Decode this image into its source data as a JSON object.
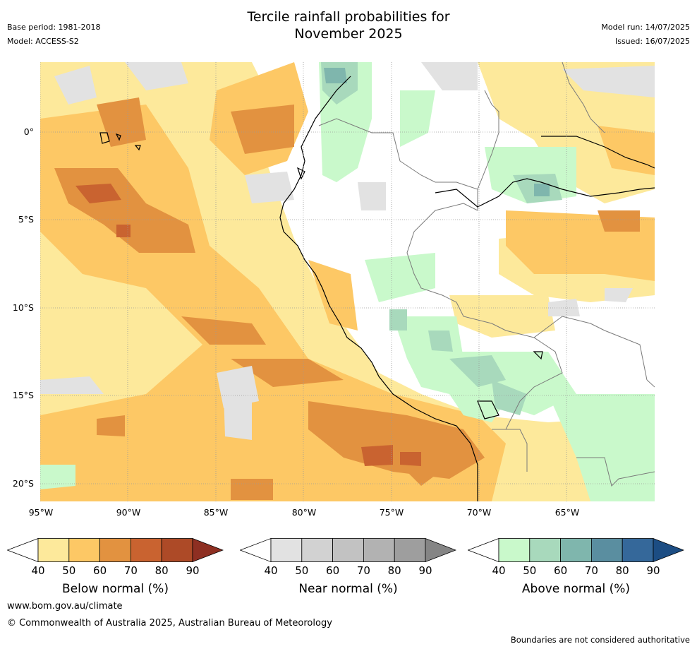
{
  "title": {
    "line1": "Tercile rainfall probabilities for",
    "line2": "November 2025"
  },
  "meta_left": {
    "base_period": "Base period: 1981-2018",
    "model": "Model: ACCESS-S2"
  },
  "meta_right": {
    "model_run": "Model run: 14/07/2025",
    "issued": "Issued: 16/07/2025"
  },
  "map": {
    "lat_labels": [
      "0°",
      "5°S",
      "10°S",
      "15°S",
      "20°S"
    ],
    "lon_labels": [
      "95°W",
      "90°W",
      "85°W",
      "80°W",
      "75°W",
      "70°W",
      "65°W"
    ]
  },
  "colorbars": [
    {
      "title": "Below normal (%)",
      "ticks": [
        "40",
        "50",
        "60",
        "70",
        "80",
        "90"
      ],
      "colors": [
        "#fde99b",
        "#fdc865",
        "#e29240",
        "#c96330",
        "#ad4a27",
        "#8e2f22"
      ]
    },
    {
      "title": "Near normal (%)",
      "ticks": [
        "40",
        "50",
        "60",
        "70",
        "80",
        "90"
      ],
      "colors": [
        "#e2e2e2",
        "#d2d2d2",
        "#c2c2c2",
        "#b2b2b2",
        "#9e9e9e",
        "#858585"
      ]
    },
    {
      "title": "Above normal (%)",
      "ticks": [
        "40",
        "50",
        "60",
        "70",
        "80",
        "90"
      ],
      "colors": [
        "#c9f9cb",
        "#a8d9bc",
        "#7fb6ad",
        "#5a8ea0",
        "#35689a",
        "#1c4d83"
      ]
    }
  ],
  "footer": {
    "url": "www.bom.gov.au/climate",
    "copyright": "© Commonwealth of Australia 2025, Australian Bureau of Meteorology",
    "note": "Boundaries are not considered authoritative"
  }
}
